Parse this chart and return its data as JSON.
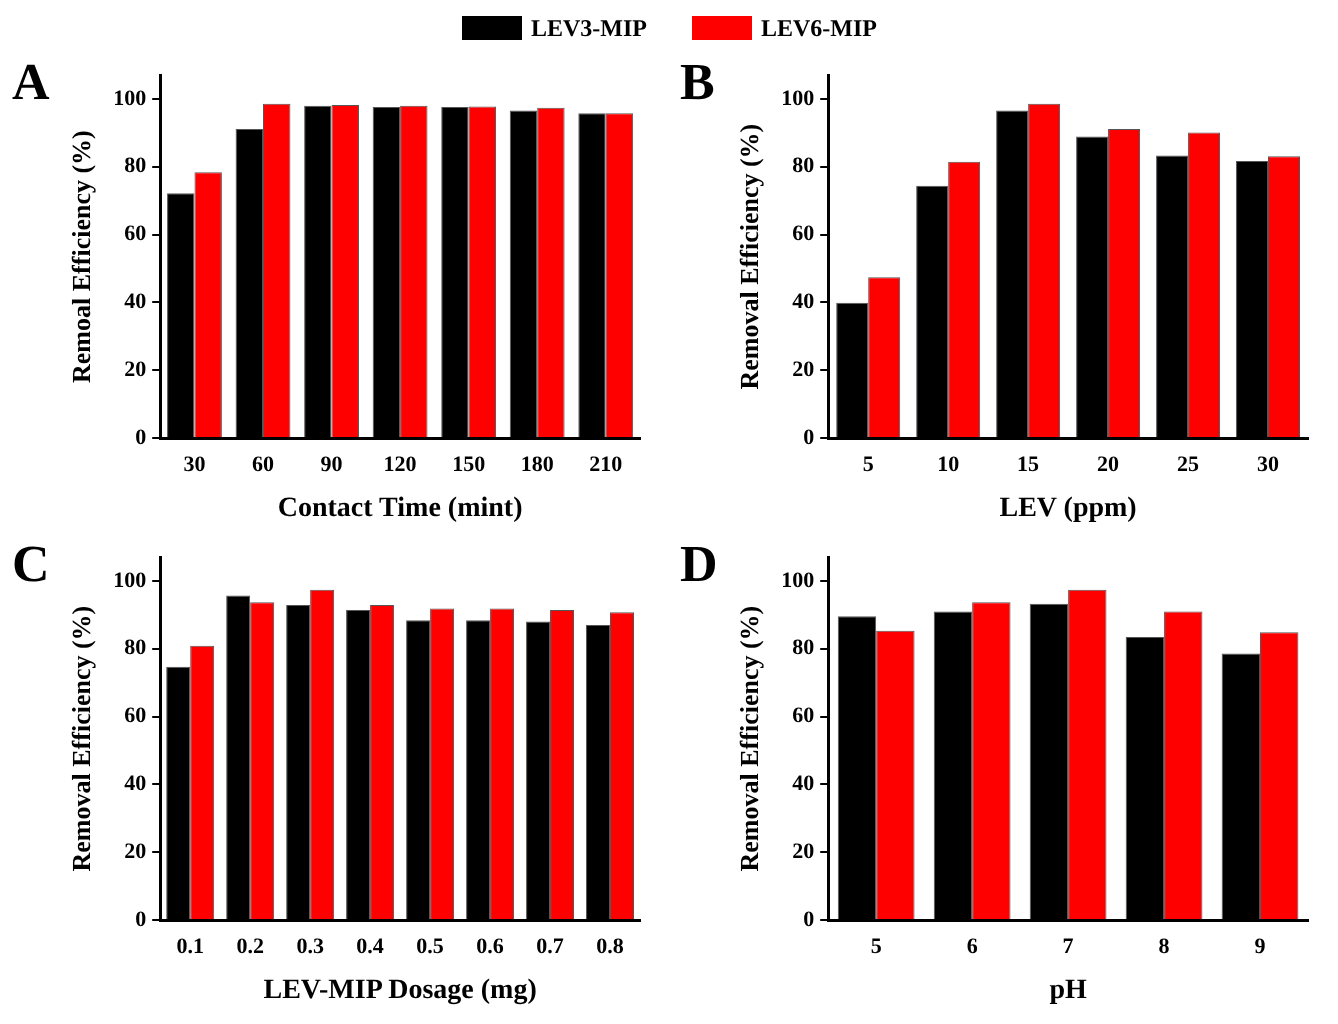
{
  "chart_data": [
    {
      "type": "bar",
      "title": "A",
      "xlabel": "Contact Time (mint)",
      "ylabel": "Remoal Efficiency (%)",
      "categories": [
        "30",
        "60",
        "90",
        "120",
        "150",
        "180",
        "210"
      ],
      "legend": "top",
      "grid": false,
      "ylim": [
        0,
        107
      ],
      "yticks": [
        0,
        20,
        40,
        60,
        80,
        100
      ],
      "series": [
        {
          "name": "LEV3-MIP",
          "color": "#000000",
          "values": [
            72.2,
            91.1,
            98.0,
            97.6,
            97.6,
            96.6,
            95.8
          ]
        },
        {
          "name": "LEV6-MIP",
          "color": "#ff0000",
          "values": [
            78.4,
            98.6,
            98.2,
            98.0,
            97.8,
            97.4,
            95.8
          ]
        }
      ]
    },
    {
      "type": "bar",
      "title": "B",
      "xlabel": "LEV (ppm)",
      "ylabel": "Removal Efficiency (%)",
      "categories": [
        "5",
        "10",
        "15",
        "20",
        "25",
        "30"
      ],
      "grid": false,
      "ylim": [
        0,
        107
      ],
      "yticks": [
        0,
        20,
        40,
        60,
        80,
        100
      ],
      "series": [
        {
          "color": "#000000",
          "values": [
            39.9,
            74.4,
            96.6,
            88.9,
            83.3,
            81.7
          ]
        },
        {
          "color": "#ff0000",
          "values": [
            47.4,
            81.5,
            98.6,
            91.1,
            90.1,
            83.1
          ]
        }
      ]
    },
    {
      "type": "bar",
      "title": "C",
      "xlabel": "LEV-MIP Dosage (mg)",
      "ylabel": "Removal Efficiency (%)",
      "categories": [
        "0.1",
        "0.2",
        "0.3",
        "0.4",
        "0.5",
        "0.6",
        "0.7",
        "0.8"
      ],
      "grid": false,
      "ylim": [
        0,
        107
      ],
      "yticks": [
        0,
        20,
        40,
        60,
        80,
        100
      ],
      "series": [
        {
          "color": "#000000",
          "values": [
            74.7,
            95.7,
            92.9,
            91.4,
            88.4,
            88.4,
            88.0,
            87.0
          ]
        },
        {
          "color": "#ff0000",
          "values": [
            80.9,
            93.7,
            97.4,
            92.9,
            91.9,
            91.9,
            91.4,
            90.8
          ]
        }
      ]
    },
    {
      "type": "bar",
      "title": "D",
      "xlabel": "pH",
      "ylabel": "Removal Efficiency (%)",
      "categories": [
        "5",
        "6",
        "7",
        "8",
        "9"
      ],
      "grid": false,
      "ylim": [
        0,
        107
      ],
      "yticks": [
        0,
        20,
        40,
        60,
        80,
        100
      ],
      "series": [
        {
          "color": "#000000",
          "values": [
            89.6,
            91.0,
            93.3,
            83.5,
            78.6
          ]
        },
        {
          "color": "#ff0000",
          "values": [
            85.3,
            93.7,
            97.4,
            91.0,
            84.9
          ]
        }
      ]
    }
  ]
}
